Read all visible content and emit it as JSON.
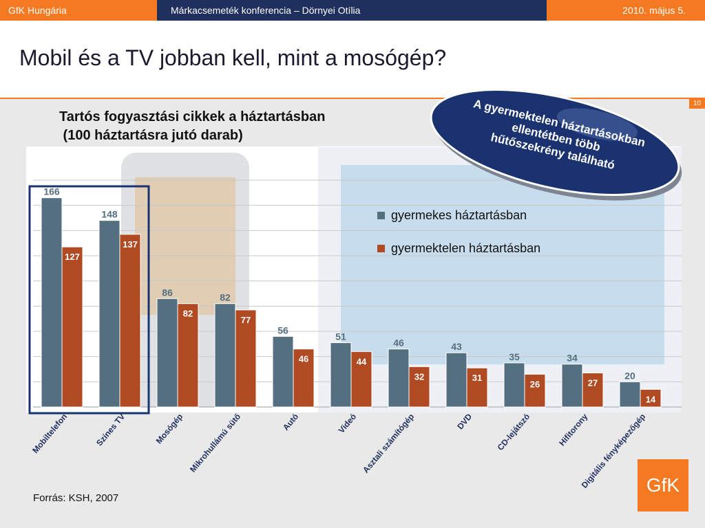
{
  "header": {
    "left": "GfK Hungária",
    "center": "Márkacsemeték konferencia – Dörnyei Otília",
    "right": "2010. május 5."
  },
  "slide": {
    "title": "Mobil és a TV jobban kell, mint a mosógép?",
    "page_number": "10",
    "source": "Forrás: KSH, 2007",
    "logo_text": "GfK"
  },
  "callout": {
    "lines": [
      "A gyermektelen háztartásokban",
      "ellentétben több",
      "hűtőszekrény található"
    ]
  },
  "colors": {
    "series1": "#536f80",
    "series2": "#b04a22",
    "accent": "#f47920",
    "navy": "#1f2f5e",
    "highlight_box": "#1a3270"
  },
  "chart_data": {
    "type": "bar",
    "title": "Tartós fogyasztási cikkek a háztartásban\n (100 háztartásra jutó darab)",
    "categories": [
      "Mobiltelefon",
      "Színes TV",
      "Mosógép",
      "Mikrohullámú sütő",
      "Autó",
      "Videó",
      "Asztali számítógép",
      "DVD",
      "CD-lejátszó",
      "Hifitorony",
      "Digitális fényképezőgép"
    ],
    "series": [
      {
        "name": "gyermekes háztartásban",
        "values": [
          166,
          148,
          86,
          82,
          56,
          51,
          46,
          43,
          35,
          34,
          20
        ]
      },
      {
        "name": "gyermektelen háztartásban",
        "values": [
          127,
          137,
          82,
          77,
          46,
          44,
          32,
          31,
          26,
          27,
          14
        ]
      }
    ],
    "ylim": [
      0,
      180
    ],
    "grid": true,
    "legend": "top-right",
    "highlighted_categories": [
      "Mobiltelefon",
      "Színes TV"
    ]
  }
}
